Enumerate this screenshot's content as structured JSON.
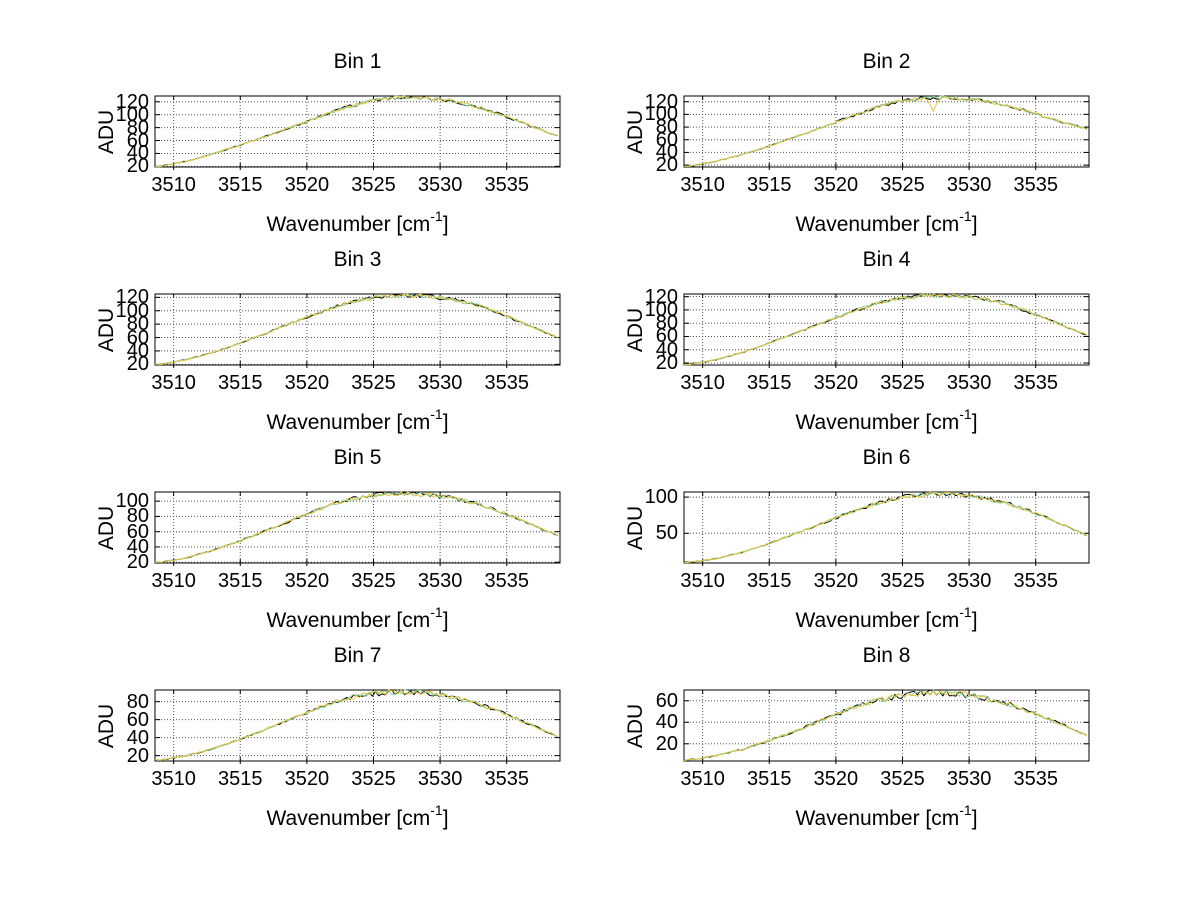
{
  "figure": {
    "background": "#ffffff",
    "text_color": "#000000",
    "axis_color": "#000000",
    "grid_color": "#555555",
    "labels": {
      "ylabel": "ADU",
      "xlabel_prefix": "Wavenumber [cm",
      "xlabel_sup": "-1",
      "xlabel_suffix": "]"
    }
  },
  "chart_data": {
    "type": "line",
    "layout": "4 rows x 2 columns of subplots",
    "xlabel": "Wavenumber [cm^-1]",
    "ylabel": "ADU",
    "grid": "dotted both axes, full box with inward ticks",
    "xlim": [
      3508.6,
      3539.0
    ],
    "x_ticks": [
      3510,
      3515,
      3520,
      3525,
      3530,
      3535
    ],
    "series_per_subplot": 3,
    "series": [
      {
        "name": "trace-black",
        "color": "#000000"
      },
      {
        "name": "trace-green",
        "color": "#8bd79e"
      },
      {
        "name": "trace-yellow",
        "color": "#e4c33e"
      }
    ],
    "x": [
      3509,
      3511,
      3513,
      3515,
      3517,
      3519,
      3521,
      3523,
      3525,
      3527,
      3529,
      3531,
      3533,
      3535,
      3537,
      3539
    ],
    "subplots": [
      {
        "title": "Bin 1",
        "values": [
          20,
          28,
          40,
          53,
          67,
          82,
          97,
          112,
          122,
          127,
          126,
          121,
          111,
          97,
          81,
          66
        ],
        "ylim": [
          19,
          129
        ],
        "y_ticks": [
          20,
          40,
          60,
          80,
          100,
          120
        ]
      },
      {
        "title": "Bin 2",
        "values": [
          18,
          26,
          37,
          50,
          65,
          80,
          96,
          111,
          122,
          126,
          126,
          122,
          113,
          101,
          88,
          76
        ],
        "ylim": [
          17,
          129
        ],
        "y_ticks": [
          20,
          40,
          60,
          80,
          100,
          120
        ],
        "dip": {
          "x": 3527.3,
          "depth": 19,
          "width": 0.5
        }
      },
      {
        "title": "Bin 3",
        "values": [
          20,
          27,
          38,
          52,
          67,
          83,
          98,
          112,
          120,
          123,
          122,
          117,
          107,
          92,
          75,
          59
        ],
        "ylim": [
          19,
          125
        ],
        "y_ticks": [
          20,
          40,
          60,
          80,
          100,
          120
        ]
      },
      {
        "title": "Bin 4",
        "values": [
          18,
          25,
          36,
          50,
          65,
          81,
          96,
          110,
          118,
          122,
          121,
          117,
          108,
          93,
          77,
          61
        ],
        "ylim": [
          17,
          124
        ],
        "y_ticks": [
          20,
          40,
          60,
          80,
          100,
          120
        ]
      },
      {
        "title": "Bin 5",
        "values": [
          20,
          26,
          36,
          48,
          62,
          76,
          90,
          102,
          108,
          110,
          109,
          104,
          96,
          83,
          68,
          54
        ],
        "ylim": [
          19,
          112
        ],
        "y_ticks": [
          20,
          40,
          60,
          80,
          100
        ]
      },
      {
        "title": "Bin 6",
        "values": [
          10,
          15,
          24,
          36,
          50,
          64,
          78,
          91,
          100,
          104,
          104,
          99,
          91,
          78,
          62,
          46
        ],
        "ylim": [
          9,
          107
        ],
        "y_ticks": [
          50,
          100
        ]
      },
      {
        "title": "Bin 7",
        "values": [
          15,
          20,
          28,
          38,
          50,
          62,
          74,
          84,
          89,
          91,
          90,
          85,
          77,
          66,
          53,
          40
        ],
        "ylim": [
          14,
          93
        ],
        "y_ticks": [
          20,
          40,
          60,
          80
        ]
      },
      {
        "title": "Bin 8",
        "values": [
          5,
          9,
          15,
          23,
          32,
          42,
          52,
          60,
          65,
          68,
          67,
          63,
          57,
          48,
          38,
          27
        ],
        "ylim": [
          4,
          70
        ],
        "y_ticks": [
          20,
          40,
          60
        ]
      }
    ]
  }
}
